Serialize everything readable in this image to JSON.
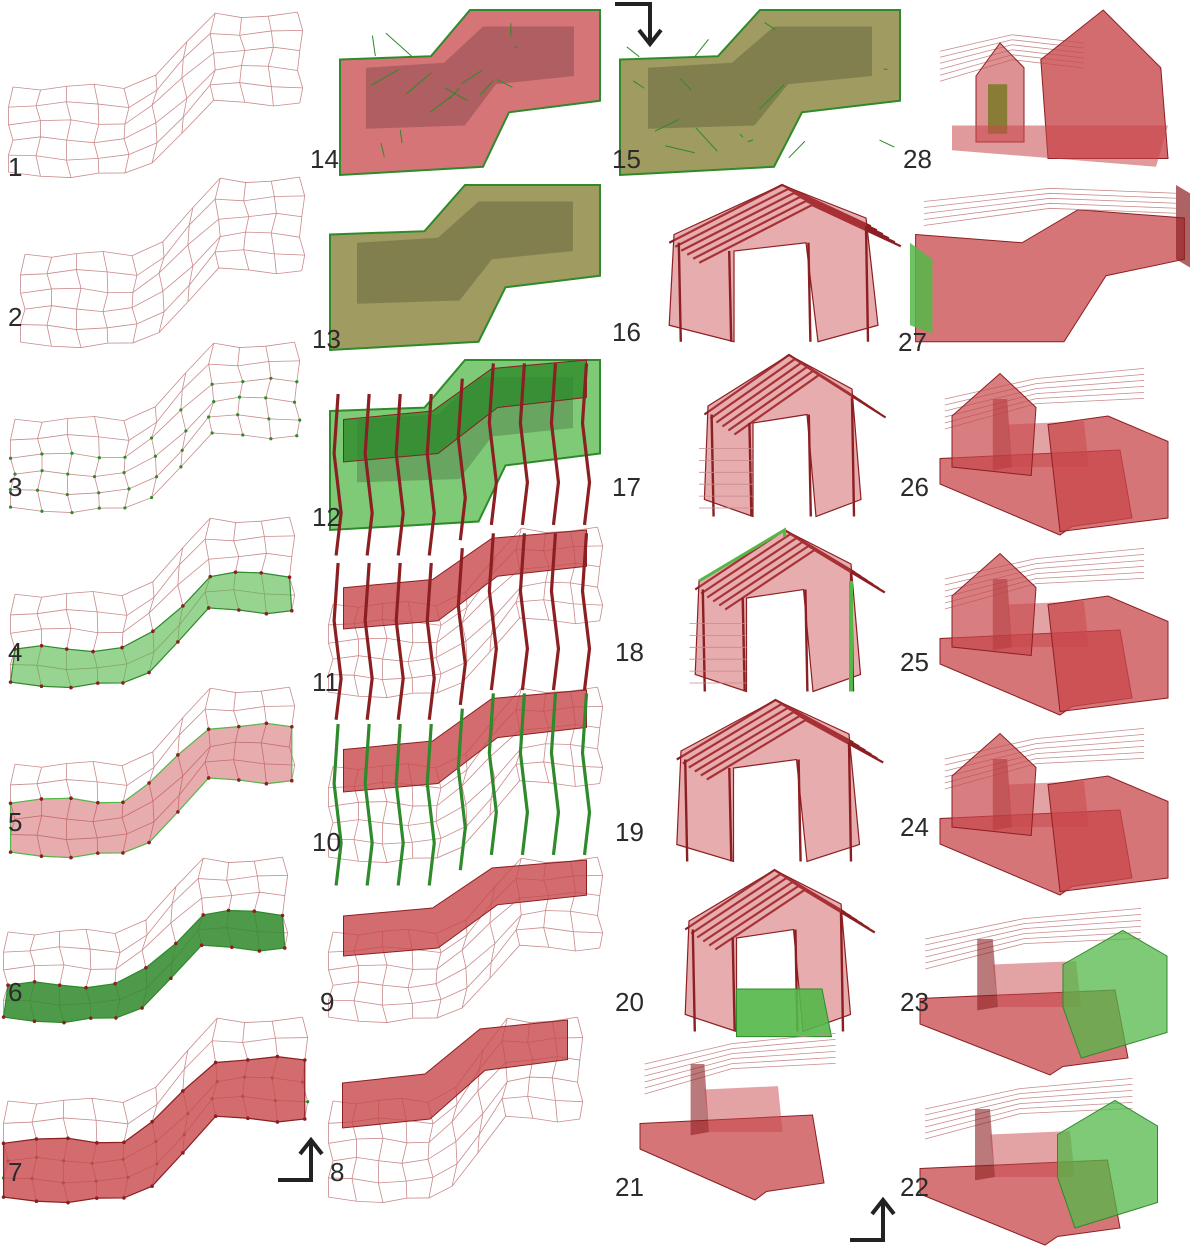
{
  "figure": {
    "description_labels": [
      "1",
      "2",
      "3",
      "4",
      "5",
      "6",
      "7",
      "8",
      "9",
      "10",
      "11",
      "12",
      "13",
      "14",
      "15",
      "16",
      "17",
      "18",
      "19",
      "20",
      "21",
      "22",
      "23",
      "24",
      "25",
      "26",
      "27",
      "28"
    ]
  },
  "colors": {
    "wire": "#c98a8a",
    "wire_dark": "#a33a3a",
    "red_fill": "#c8474b",
    "red_dark": "#8c1f22",
    "green_fill": "#53b848",
    "green_dark": "#2e8a2a",
    "olive_fill": "#7f7a2c",
    "arrow": "#222222",
    "label": "#2b2b2b"
  },
  "steps": [
    {
      "id": 1,
      "label": "1"
    },
    {
      "id": 2,
      "label": "2"
    },
    {
      "id": 3,
      "label": "3"
    },
    {
      "id": 4,
      "label": "4"
    },
    {
      "id": 5,
      "label": "5"
    },
    {
      "id": 6,
      "label": "6"
    },
    {
      "id": 7,
      "label": "7"
    },
    {
      "id": 8,
      "label": "8"
    },
    {
      "id": 9,
      "label": "9"
    },
    {
      "id": 10,
      "label": "10"
    },
    {
      "id": 11,
      "label": "11"
    },
    {
      "id": 12,
      "label": "12"
    },
    {
      "id": 13,
      "label": "13"
    },
    {
      "id": 14,
      "label": "14"
    },
    {
      "id": 15,
      "label": "15"
    },
    {
      "id": 16,
      "label": "16"
    },
    {
      "id": 17,
      "label": "17"
    },
    {
      "id": 18,
      "label": "18"
    },
    {
      "id": 19,
      "label": "19"
    },
    {
      "id": 20,
      "label": "20"
    },
    {
      "id": 21,
      "label": "21"
    },
    {
      "id": 22,
      "label": "22"
    },
    {
      "id": 23,
      "label": "23"
    },
    {
      "id": 24,
      "label": "24"
    },
    {
      "id": 25,
      "label": "25"
    },
    {
      "id": 26,
      "label": "26"
    },
    {
      "id": 27,
      "label": "27"
    },
    {
      "id": 28,
      "label": "28"
    }
  ],
  "arrows": [
    {
      "name": "flow-arrow-up-left",
      "direction": "up"
    },
    {
      "name": "flow-arrow-down",
      "direction": "down"
    },
    {
      "name": "flow-arrow-up-right",
      "direction": "up"
    }
  ]
}
